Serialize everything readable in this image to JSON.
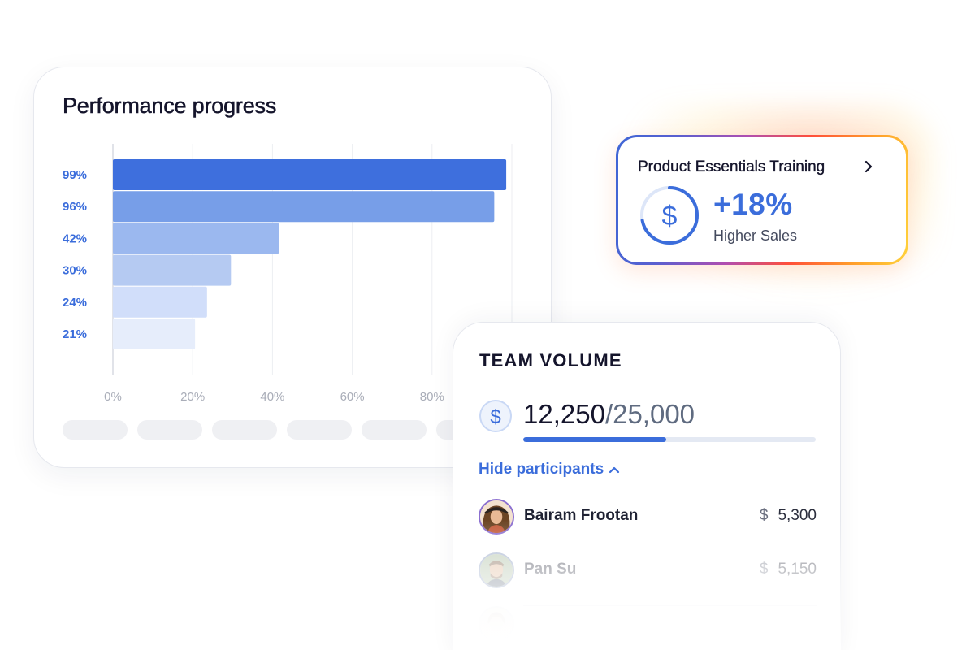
{
  "performance": {
    "title": "Performance progress",
    "placeholder_pills": 6
  },
  "chart_data": {
    "type": "bar",
    "orientation": "horizontal",
    "categories": [
      "99%",
      "96%",
      "42%",
      "30%",
      "24%",
      "21%"
    ],
    "values": [
      99,
      96,
      42,
      30,
      24,
      21
    ],
    "xlim": [
      0,
      100
    ],
    "xticks": [
      "0%",
      "20%",
      "40%",
      "60%",
      "80%"
    ],
    "grid": true,
    "colors": [
      "#3e6fdd",
      "#779ee8",
      "#9bb8ef",
      "#b5caf2",
      "#d1defa",
      "#e6edfb"
    ]
  },
  "product": {
    "title": "Product Essentials Training",
    "percent": "+18%",
    "subtitle": "Higher Sales",
    "icon": "dollar-circle-icon",
    "ring_progress": 0.72,
    "accent": "#3b6ddb"
  },
  "team": {
    "title": "TEAM VOLUME",
    "current": "12,250",
    "total": "/25,000",
    "progress": 0.49,
    "toggle_label": "Hide participants",
    "participants": [
      {
        "name": "Bairam Frootan",
        "currency": "$",
        "amount": "5,300"
      },
      {
        "name": "Pan Su",
        "currency": "$",
        "amount": "5,150"
      },
      {
        "name": "",
        "currency": "",
        "amount": ""
      }
    ]
  }
}
